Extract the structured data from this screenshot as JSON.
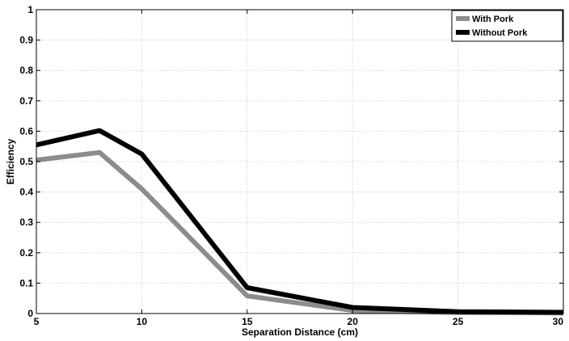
{
  "chart_data": {
    "type": "line",
    "xlabel": "Separation Distance (cm)",
    "ylabel": "Efficiency",
    "xlim": [
      5,
      30
    ],
    "ylim": [
      0,
      1
    ],
    "xticks": [
      "5",
      "10",
      "15",
      "20",
      "25",
      "30"
    ],
    "yticks": [
      "0",
      "0.1",
      "0.2",
      "0.3",
      "0.4",
      "0.5",
      "0.6",
      "0.7",
      "0.8",
      "0.9",
      "1"
    ],
    "grid": true,
    "legend_position": "top-right",
    "series": [
      {
        "name": "With Pork",
        "color": "#8c8c8c",
        "x": [
          5,
          8,
          10,
          15,
          20,
          25,
          30
        ],
        "y": [
          0.505,
          0.53,
          0.41,
          0.058,
          0.01,
          0.003,
          0.002
        ]
      },
      {
        "name": "Without Pork",
        "color": "#000000",
        "x": [
          5,
          8,
          10,
          15,
          20,
          25,
          30
        ],
        "y": [
          0.555,
          0.602,
          0.525,
          0.085,
          0.02,
          0.006,
          0.004
        ]
      }
    ]
  }
}
